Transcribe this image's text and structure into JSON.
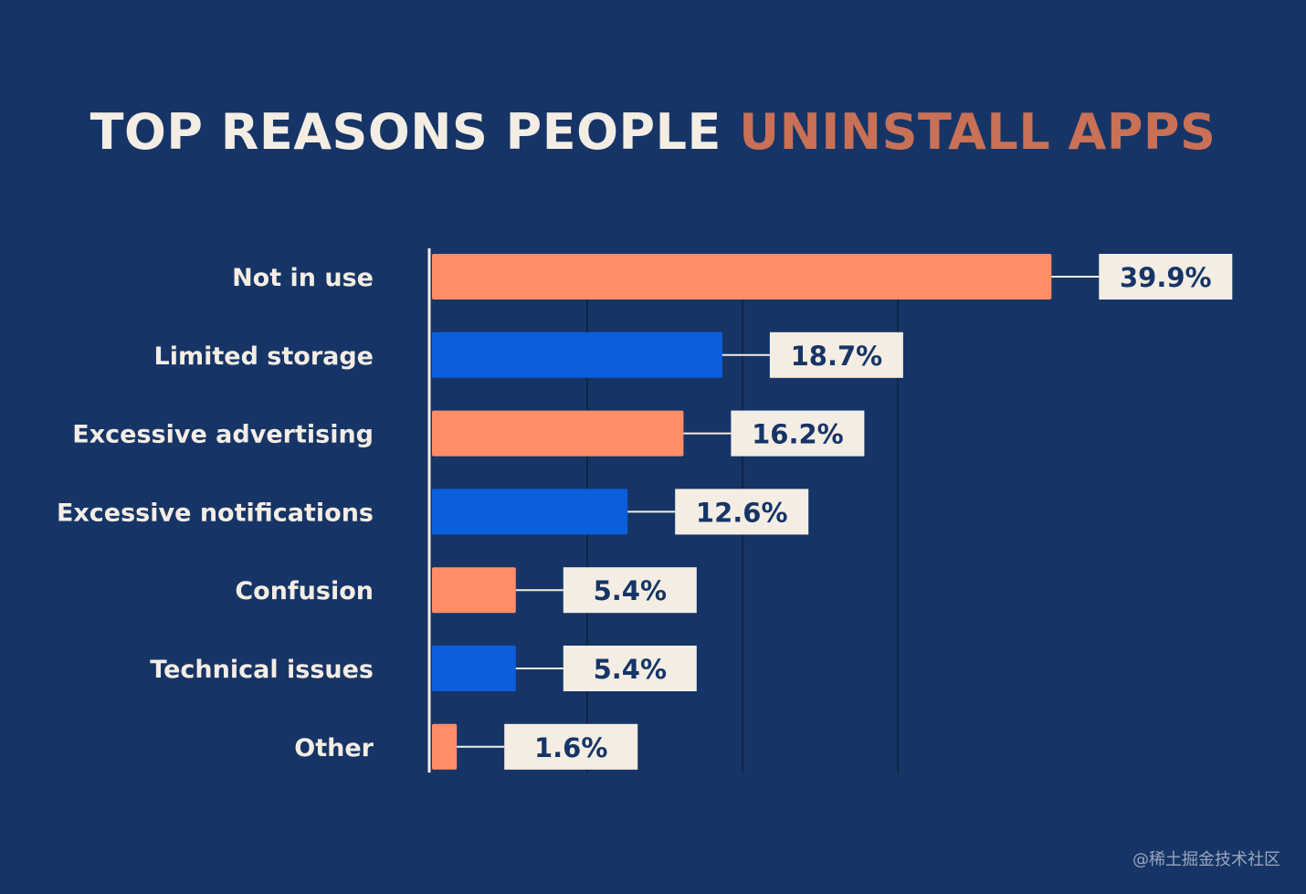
{
  "title": {
    "part_a": "TOP REASONS PEOPLE",
    "part_b": "UNINSTALL APPS"
  },
  "colors": {
    "background": "#163566",
    "bar_orange": "#ff8d68",
    "bar_blue": "#0b5fdc",
    "label_box": "#f4ede4",
    "label_text": "#163566",
    "category_text": "#f4ede4",
    "title_accent": "#c97156",
    "gridline": "#0f2546",
    "axis": "#f4ede4"
  },
  "chart_data": {
    "type": "bar",
    "orientation": "horizontal",
    "categories": [
      "Not in use",
      "Limited storage",
      "Excessive advertising",
      "Excessive notifications",
      "Confusion",
      "Technical issues",
      "Other"
    ],
    "values": [
      39.9,
      18.7,
      16.2,
      12.6,
      5.4,
      5.4,
      1.6
    ],
    "value_labels": [
      "39.9%",
      "18.7%",
      "16.2%",
      "12.6%",
      "5.4%",
      "5.4%",
      "1.6%"
    ],
    "bar_colors": [
      "#ff8d68",
      "#0b5fdc",
      "#ff8d68",
      "#0b5fdc",
      "#ff8d68",
      "#0b5fdc",
      "#ff8d68"
    ],
    "title": "TOP REASONS PEOPLE UNINSTALL APPS",
    "xlabel": "",
    "ylabel": "",
    "xlim": [
      0,
      40
    ],
    "grid": true,
    "legend": "none"
  },
  "watermark": "@稀土掘金技术社区"
}
